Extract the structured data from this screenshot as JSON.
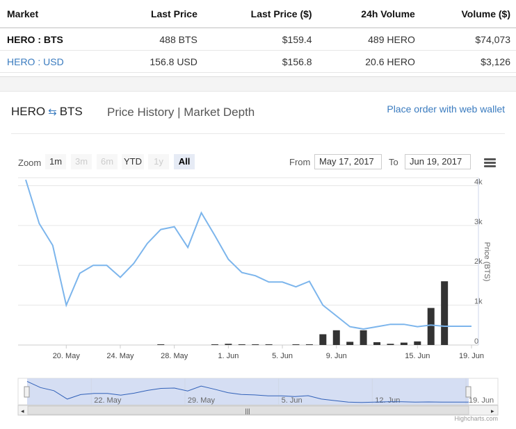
{
  "markets": {
    "headers": [
      "Market",
      "Last Price",
      "Last Price ($)",
      "24h Volume",
      "Volume ($)"
    ],
    "rows": [
      {
        "market": "HERO : BTS",
        "last": "488 BTS",
        "last_usd": "$159.4",
        "vol": "489 HERO",
        "vol_usd": "$74,073"
      },
      {
        "market": "HERO : USD",
        "last": "156.8 USD",
        "last_usd": "$156.8",
        "vol": "20.6 HERO",
        "vol_usd": "$3,126"
      }
    ]
  },
  "header": {
    "base": "HERO",
    "swap_icon": "swap-arrows-icon",
    "quote": "BTS",
    "tabs": "Price History | Market Depth",
    "web_wallet": "Place order with web wallet"
  },
  "toolbar": {
    "zoom_label": "Zoom",
    "zoom_buttons": [
      "1m",
      "3m",
      "6m",
      "YTD",
      "1y",
      "All"
    ],
    "active_zoom": "All",
    "from_label": "From",
    "from_value": "May 17, 2017",
    "to_label": "To",
    "to_value": "Jun 19, 2017",
    "menu_icon": "hamburger-menu-icon"
  },
  "credit": "Highcharts.com",
  "chart_data": {
    "type": "line",
    "x_type": "date",
    "x_ticks": [
      "20. May",
      "24. May",
      "28. May",
      "1. Jun",
      "5. Jun",
      "9. Jun",
      "15. Jun",
      "19. Jun"
    ],
    "y_ticks": [
      "0",
      "1k",
      "2k",
      "3k",
      "4k"
    ],
    "ylabel": "Price (BTS)",
    "ylim": [
      0,
      4200
    ],
    "price_series": {
      "x": [
        "2017-05-17",
        "2017-05-18",
        "2017-05-19",
        "2017-05-20",
        "2017-05-21",
        "2017-05-22",
        "2017-05-23",
        "2017-05-24",
        "2017-05-25",
        "2017-05-26",
        "2017-05-27",
        "2017-05-28",
        "2017-05-29",
        "2017-05-30",
        "2017-05-31",
        "2017-06-01",
        "2017-06-02",
        "2017-06-03",
        "2017-06-04",
        "2017-06-05",
        "2017-06-06",
        "2017-06-07",
        "2017-06-08",
        "2017-06-09",
        "2017-06-10",
        "2017-06-11",
        "2017-06-12",
        "2017-06-13",
        "2017-06-14",
        "2017-06-15",
        "2017-06-16",
        "2017-06-17",
        "2017-06-18",
        "2017-06-19"
      ],
      "values": [
        4150,
        3050,
        2500,
        1000,
        1800,
        2000,
        2000,
        1700,
        2050,
        2550,
        2900,
        2970,
        2450,
        3320,
        2750,
        2150,
        1820,
        1740,
        1580,
        1580,
        1460,
        1600,
        1000,
        730,
        460,
        400,
        460,
        520,
        520,
        460,
        500,
        470,
        470,
        470
      ]
    },
    "volume_series": {
      "x": [
        "2017-05-27",
        "2017-05-31",
        "2017-06-01",
        "2017-06-02",
        "2017-06-03",
        "2017-06-04",
        "2017-06-06",
        "2017-06-07",
        "2017-06-08",
        "2017-06-09",
        "2017-06-10",
        "2017-06-11",
        "2017-06-12",
        "2017-06-13",
        "2017-06-14",
        "2017-06-15",
        "2017-06-16",
        "2017-06-17",
        "2017-06-18"
      ],
      "values": [
        15,
        10,
        30,
        15,
        10,
        15,
        10,
        15,
        270,
        370,
        80,
        370,
        70,
        30,
        60,
        90,
        930,
        1600,
        0
      ]
    },
    "navigator": {
      "x_ticks": [
        "22. May",
        "29. May",
        "5. Jun",
        "12. Jun",
        "19. Jun"
      ]
    },
    "colors": {
      "line": "#7cb5ec",
      "bars": "#333333",
      "navigator_mask": "#c7d3ef"
    }
  }
}
